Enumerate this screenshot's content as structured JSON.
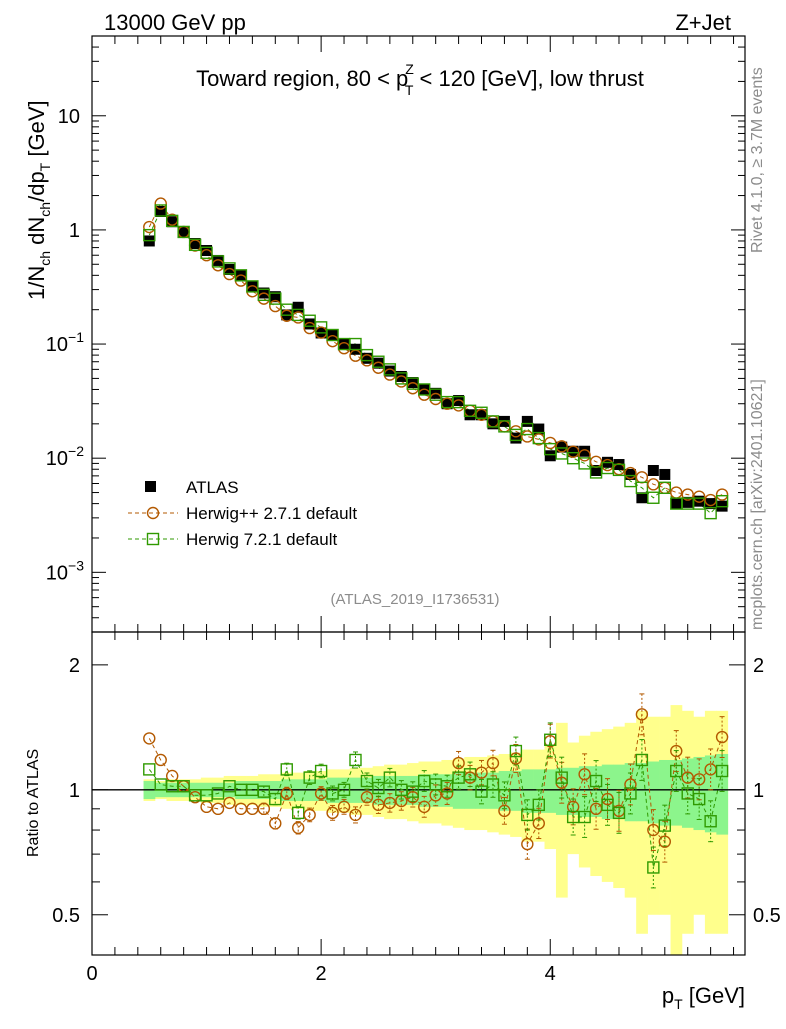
{
  "header": {
    "left": "13000 GeV pp",
    "right": "Z+Jet"
  },
  "side_labels": {
    "rivet": "Rivet 4.1.0, ≥ 3.7M events",
    "mcplots": "mcplots.cern.ch [arXiv:2401.10621]"
  },
  "colors": {
    "atlas": "#000000",
    "herwigpp": "#b35900",
    "herwig7": "#2f9a00",
    "band_inner": "#8cf58c",
    "band_outer": "#ffff8c"
  },
  "chart_data": [
    {
      "type": "scatter",
      "scale": "log",
      "title": {
        "prefix": "Toward region, 80 < p",
        "sup": "Z",
        "sub": "T",
        "suffix": " < 120 [GeV], low thrust"
      },
      "ylabel": {
        "a": "1/N",
        "a_sub": "ch",
        "b": " dN",
        "b_sub": "ch",
        "c": "/dp",
        "c_sub": "T",
        "d": " [GeV]"
      },
      "watermark": "(ATLAS_2019_I1736531)",
      "xlim": [
        0,
        5.7
      ],
      "ylim": [
        0.0003,
        50
      ],
      "y_ticks": [
        {
          "value": 10,
          "base": "10",
          "exp": ""
        },
        {
          "value": 1,
          "base": "1",
          "exp": ""
        },
        {
          "value": 0.1,
          "base": "10",
          "exp": "−1"
        },
        {
          "value": 0.01,
          "base": "10",
          "exp": "−2"
        },
        {
          "value": 0.001,
          "base": "10",
          "exp": "−3"
        }
      ],
      "legend": {
        "position": "bottom-left",
        "entries": [
          {
            "label": "ATLAS",
            "series": "atlas"
          },
          {
            "label": "Herwig++ 2.7.1 default",
            "series": "herwigpp"
          },
          {
            "label": "Herwig 7.2.1 default",
            "series": "herwig7"
          }
        ]
      },
      "x": [
        0.5,
        0.6,
        0.7,
        0.8,
        0.9,
        1.0,
        1.1,
        1.2,
        1.3,
        1.4,
        1.5,
        1.6,
        1.7,
        1.8,
        1.9,
        2.0,
        2.1,
        2.2,
        2.3,
        2.4,
        2.5,
        2.6,
        2.7,
        2.8,
        2.9,
        3.0,
        3.1,
        3.2,
        3.3,
        3.4,
        3.5,
        3.6,
        3.7,
        3.8,
        3.9,
        4.0,
        4.1,
        4.2,
        4.3,
        4.4,
        4.5,
        4.6,
        4.7,
        4.8,
        4.9,
        5.0,
        5.1,
        5.2,
        5.3,
        5.4,
        5.5
      ],
      "series": [
        {
          "name": "ATLAS",
          "values": [
            0.8,
            1.45,
            1.18,
            0.95,
            0.76,
            0.66,
            0.54,
            0.45,
            0.4,
            0.32,
            0.28,
            0.26,
            0.18,
            0.21,
            0.15,
            0.125,
            0.12,
            0.1,
            0.09,
            0.075,
            0.068,
            0.058,
            0.052,
            0.046,
            0.04,
            0.037,
            0.03,
            0.032,
            0.024,
            0.024,
            0.02,
            0.021,
            0.015,
            0.021,
            0.018,
            0.0105,
            0.0125,
            0.0115,
            0.0115,
            0.0078,
            0.0092,
            0.0088,
            0.0072,
            0.0045,
            0.0078,
            0.0072,
            0.004,
            0.0041,
            0.0042,
            0.004,
            0.0038
          ]
        },
        {
          "name": "Herwig++ 2.7.1 default",
          "values": [
            1.06,
            1.7,
            1.23,
            0.96,
            0.73,
            0.6,
            0.49,
            0.41,
            0.36,
            0.29,
            0.25,
            0.215,
            0.177,
            0.171,
            0.138,
            0.126,
            0.106,
            0.092,
            0.079,
            0.072,
            0.062,
            0.054,
            0.047,
            0.041,
            0.036,
            0.033,
            0.03,
            0.029,
            0.026,
            0.024,
            0.021,
            0.019,
            0.0172,
            0.0155,
            0.0146,
            0.0136,
            0.0127,
            0.0114,
            0.0106,
            0.0093,
            0.0087,
            0.008,
            0.0074,
            0.0068,
            0.0059,
            0.0055,
            0.005,
            0.0048,
            0.0046,
            0.0043,
            0.0048
          ]
        },
        {
          "name": "Herwig 7.2.1 default",
          "values": [
            0.9,
            1.48,
            1.2,
            0.96,
            0.74,
            0.63,
            0.53,
            0.46,
            0.4,
            0.32,
            0.27,
            0.25,
            0.2,
            0.18,
            0.16,
            0.14,
            0.12,
            0.1,
            0.1,
            0.08,
            0.07,
            0.06,
            0.05,
            0.045,
            0.04,
            0.036,
            0.031,
            0.031,
            0.026,
            0.025,
            0.021,
            0.019,
            0.016,
            0.018,
            0.015,
            0.012,
            0.011,
            0.01,
            0.009,
            0.0075,
            0.0082,
            0.0079,
            0.0063,
            0.0055,
            0.0045,
            0.0055,
            0.004,
            0.004,
            0.004,
            0.0033,
            0.0042
          ]
        }
      ]
    },
    {
      "type": "scatter",
      "scale": "log",
      "ylabel": "Ratio to ATLAS",
      "xlabel": {
        "main": "p",
        "sub": "T",
        "unit": " [GeV]"
      },
      "xlim": [
        0,
        5.7
      ],
      "ylim": [
        0.4,
        2.4
      ],
      "x_ticks": [
        0,
        2,
        4
      ],
      "y_ticks": [
        0.5,
        1,
        2
      ],
      "x": [
        0.5,
        0.6,
        0.7,
        0.8,
        0.9,
        1.0,
        1.1,
        1.2,
        1.3,
        1.4,
        1.5,
        1.6,
        1.7,
        1.8,
        1.9,
        2.0,
        2.1,
        2.2,
        2.3,
        2.4,
        2.5,
        2.6,
        2.7,
        2.8,
        2.9,
        3.0,
        3.1,
        3.2,
        3.3,
        3.4,
        3.5,
        3.6,
        3.7,
        3.8,
        3.9,
        4.0,
        4.1,
        4.2,
        4.3,
        4.4,
        4.5,
        4.6,
        4.7,
        4.8,
        4.9,
        5.0,
        5.1,
        5.2,
        5.3,
        5.4,
        5.5
      ],
      "bands": {
        "inner": [
          0.05,
          0.04,
          0.04,
          0.04,
          0.04,
          0.04,
          0.04,
          0.04,
          0.05,
          0.05,
          0.05,
          0.05,
          0.06,
          0.06,
          0.06,
          0.06,
          0.07,
          0.07,
          0.07,
          0.07,
          0.08,
          0.08,
          0.08,
          0.08,
          0.09,
          0.09,
          0.09,
          0.1,
          0.1,
          0.1,
          0.1,
          0.11,
          0.11,
          0.12,
          0.12,
          0.12,
          0.13,
          0.13,
          0.14,
          0.14,
          0.15,
          0.15,
          0.16,
          0.16,
          0.17,
          0.18,
          0.18,
          0.19,
          0.2,
          0.21,
          0.22
        ],
        "outer": [
          0.06,
          0.05,
          0.06,
          0.06,
          0.06,
          0.07,
          0.07,
          0.08,
          0.08,
          0.08,
          0.09,
          0.09,
          0.1,
          0.1,
          0.11,
          0.11,
          0.12,
          0.12,
          0.13,
          0.13,
          0.14,
          0.15,
          0.15,
          0.16,
          0.17,
          0.17,
          0.18,
          0.19,
          0.2,
          0.2,
          0.21,
          0.22,
          0.23,
          0.25,
          0.25,
          0.28,
          0.45,
          0.3,
          0.35,
          0.38,
          0.4,
          0.42,
          0.45,
          0.55,
          0.5,
          0.5,
          0.6,
          0.55,
          0.5,
          0.55,
          0.55
        ]
      },
      "series": [
        {
          "name": "Herwig++ 2.7.1 default",
          "values": [
            1.33,
            1.18,
            1.08,
            1.02,
            0.96,
            0.91,
            0.9,
            0.93,
            0.9,
            0.9,
            0.9,
            0.83,
            0.98,
            0.81,
            0.87,
            0.98,
            0.88,
            0.91,
            0.87,
            0.96,
            0.92,
            0.93,
            0.94,
            0.96,
            0.91,
            0.97,
            0.98,
            1.16,
            1.07,
            1.1,
            1.16,
            0.89,
            1.19,
            0.74,
            0.83,
            1.31,
            1.04,
            0.91,
            1.09,
            0.9,
            0.95,
            0.89,
            1.03,
            1.52,
            0.8,
            0.75,
            1.24,
            1.07,
            1.06,
            1.12,
            1.34
          ]
        },
        {
          "name": "Herwig 7.2.1 default",
          "values": [
            1.12,
            1.03,
            1.02,
            1.02,
            0.97,
            0.97,
            0.98,
            1.02,
            1.0,
            1.0,
            0.99,
            0.95,
            1.12,
            0.88,
            1.07,
            1.11,
            0.98,
            1.0,
            1.18,
            1.05,
            1.01,
            1.07,
            1.0,
            0.99,
            1.05,
            1.03,
            1.02,
            1.07,
            1.09,
            0.99,
            1.03,
            0.97,
            1.24,
            0.87,
            0.92,
            1.32,
            1.07,
            0.86,
            0.86,
            1.05,
            0.92,
            0.88,
            0.98,
            1.18,
            0.65,
            0.82,
            1.11,
            0.98,
            0.95,
            0.84,
            1.11
          ]
        }
      ]
    }
  ]
}
